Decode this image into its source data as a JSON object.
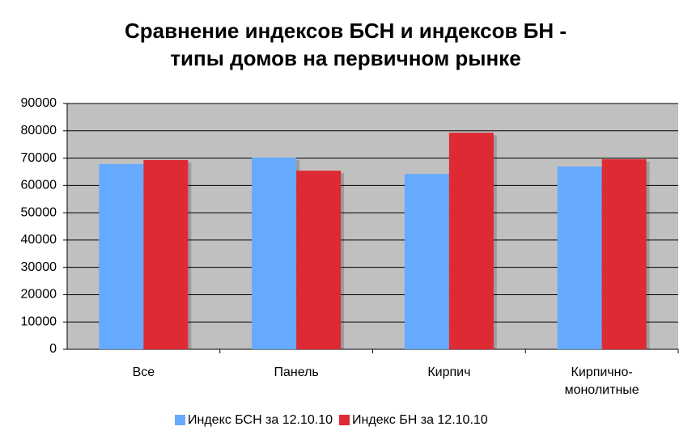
{
  "chart_data": {
    "type": "bar",
    "title": [
      "Сравнение индексов БСН и индексов БН  -",
      "типы домов на первичном рынке"
    ],
    "categories": [
      "Все",
      "Панель",
      "Кирпич",
      "Кирпично-монолитные"
    ],
    "series": [
      {
        "name": "Индекс БСН за 12.10.10",
        "color": "#66aaff",
        "values": [
          67800,
          70200,
          64200,
          66900
        ]
      },
      {
        "name": "Индекс БН за 12.10.10",
        "color": "#dd2a33",
        "values": [
          69300,
          65400,
          79300,
          69600
        ]
      }
    ],
    "ylim": [
      0,
      90000
    ],
    "yticks": [
      0,
      10000,
      20000,
      30000,
      40000,
      50000,
      60000,
      70000,
      80000,
      90000
    ],
    "grid": true,
    "legend": "bottom"
  }
}
